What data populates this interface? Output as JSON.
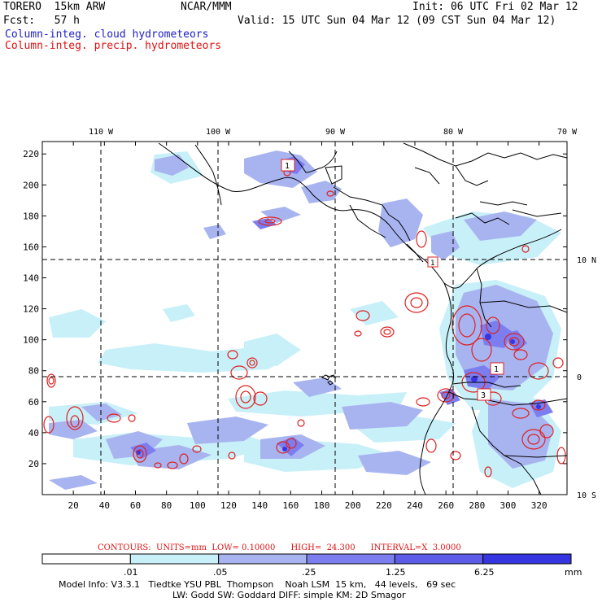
{
  "header": {
    "model": "TORERO  15km ARW",
    "org": "NCAR/MMM",
    "init": "Init: 06 UTC Fri 02 Mar 12",
    "fcst": "Fcst:   57 h",
    "valid": "Valid: 15 UTC Sun 04 Mar 12 (09 CST Sun 04 Mar 12)",
    "field_cloud": "Column-integ. cloud hydrometeors",
    "field_precip": "Column-integ. precip. hydrometeors"
  },
  "colors": {
    "cloud_text": "#2020c8",
    "precip_text": "#e01010",
    "shade1": "#c8f0f8",
    "shade2": "#a8b4f0",
    "shade3": "#7c7ef0",
    "shade4": "#5c5ce8",
    "shade5": "#3636e0",
    "shade6": "#1c1cd8",
    "contour": "#e02020"
  },
  "axes": {
    "lon_labels": [
      "110 W",
      "100 W",
      "90 W",
      "80 W",
      "70 W"
    ],
    "lat_labels": [
      "10 N",
      "0",
      "10 S"
    ],
    "x_ticks": [
      "20",
      "40",
      "60",
      "80",
      "100",
      "120",
      "140",
      "160",
      "180",
      "200",
      "220",
      "240",
      "260",
      "280",
      "300",
      "320"
    ],
    "y_ticks": [
      "20",
      "40",
      "60",
      "80",
      "100",
      "120",
      "140",
      "160",
      "180",
      "200",
      "220"
    ]
  },
  "contour_info": {
    "label": "CONTOURS:  UNITS=mm  LOW= 0.10000      HIGH=  24.300      INTERVAL=X  3.0000"
  },
  "colorbar": {
    "levels": [
      ".01",
      ".05",
      ".25",
      "1.25",
      "6.25"
    ],
    "units": "mm"
  },
  "footer": {
    "line1": "Model Info: V3.3.1   Tiedtke YSU PBL  Thompson    Noah LSM  15 km,   44 levels,   69 sec",
    "line2": "LW: Godd SW: Goddard DIFF: simple KM: 2D Smagor"
  },
  "contour_labels": [
    "1",
    "1",
    "1",
    "3"
  ]
}
